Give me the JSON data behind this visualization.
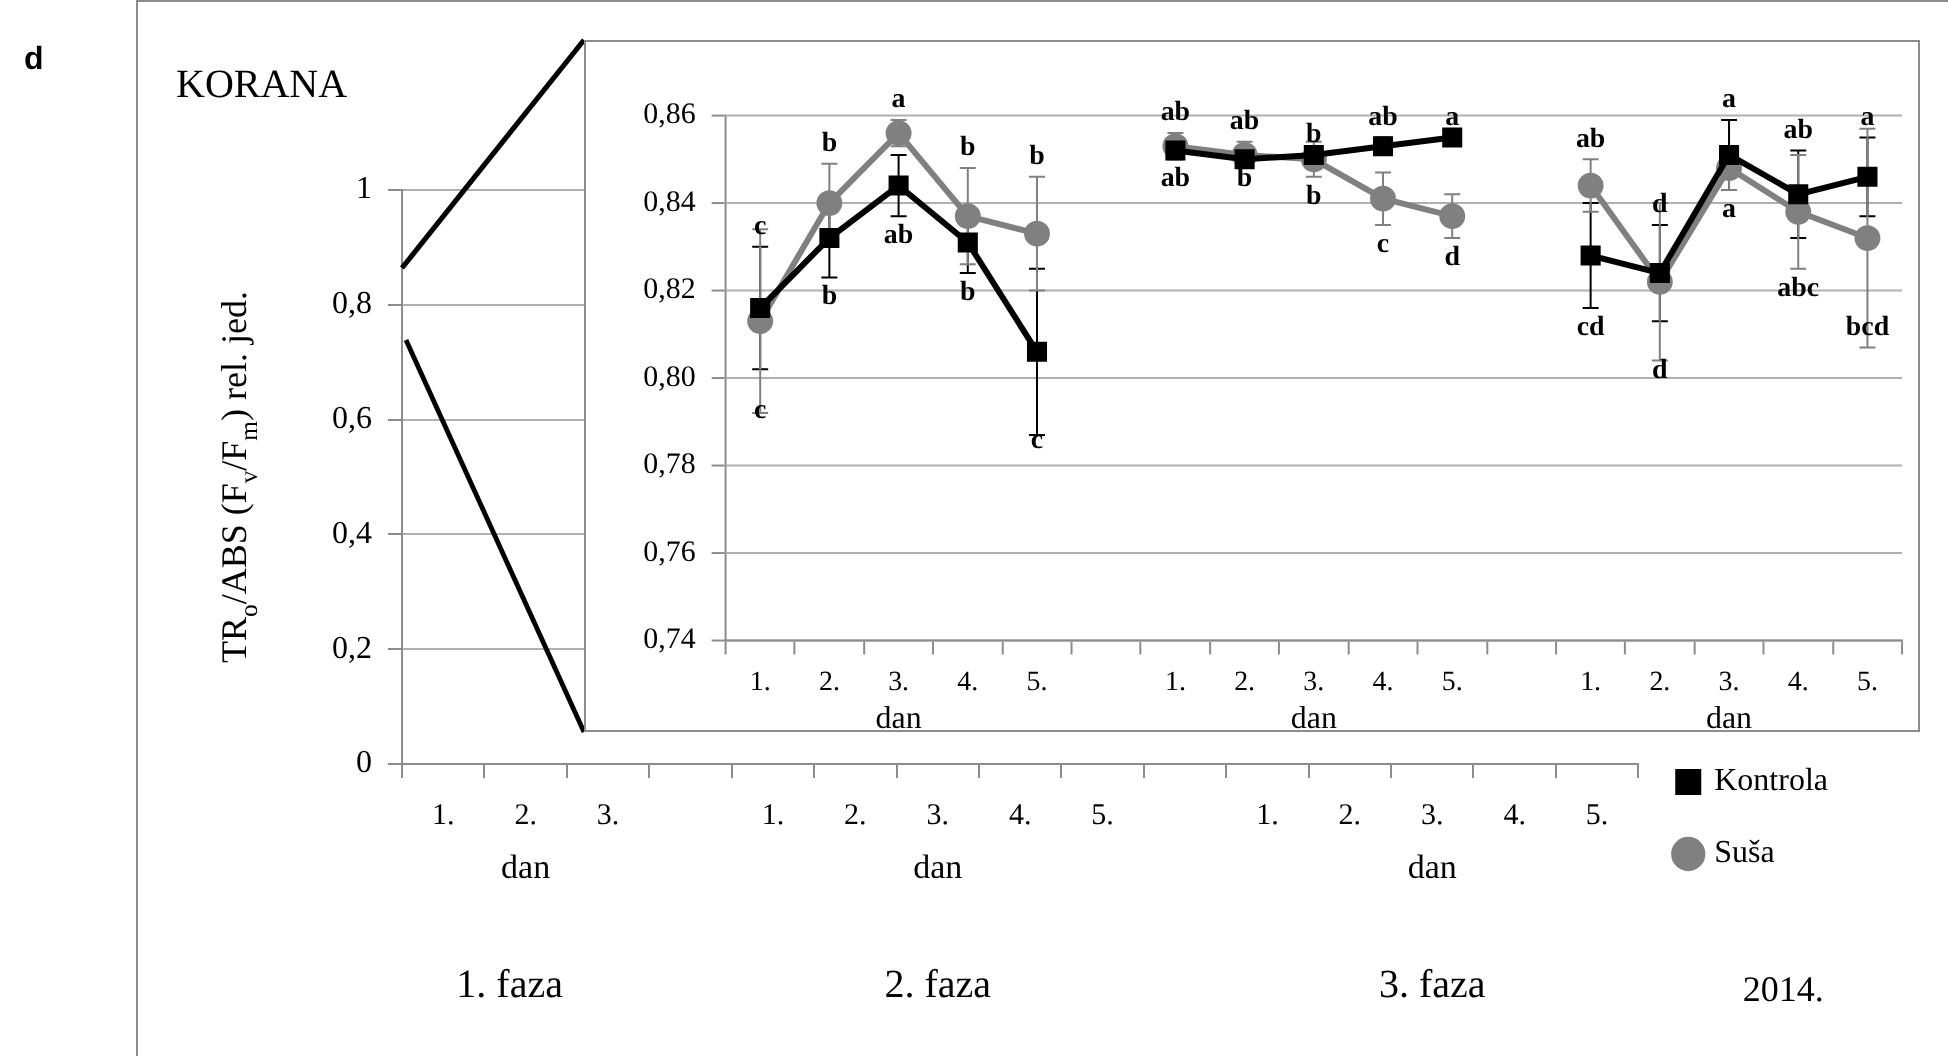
{
  "chart_data": [
    {
      "type": "line",
      "title": "KORANA",
      "ylabel": "TR$_{o}$/ABS (F$_{v}$/F$_{m}$) rel. jed.",
      "categories": [
        "1.",
        "2.",
        "3.",
        null,
        "1.",
        "2.",
        "3.",
        "4.",
        "5.",
        null,
        "1.",
        "2.",
        "3.",
        "4.",
        "5."
      ],
      "series": [
        {
          "name": "Kontrola",
          "color": "#000000",
          "marker": "square",
          "values": [
            null,
            null,
            null,
            null,
            null,
            null,
            null,
            null,
            null,
            null,
            null,
            null,
            null,
            null,
            null
          ]
        },
        {
          "name": "Suša",
          "color": "#808080",
          "marker": "circle",
          "values": [
            null,
            null,
            null,
            null,
            null,
            null,
            null,
            null,
            null,
            null,
            null,
            null,
            null,
            null,
            null
          ]
        }
      ],
      "ylim": [
        0,
        1
      ],
      "yticks": [
        0,
        {
          "value": 0.2,
          "label": "0,2"
        },
        {
          "value": 0.4,
          "label": "0,4"
        },
        {
          "value": 0.6,
          "label": "0,6"
        },
        {
          "value": 0.8,
          "label": "0,8"
        },
        1
      ],
      "grid": "y",
      "legend": "bottom right",
      "annotations": [
        "dan",
        "dan",
        "dan",
        "1. faza",
        "2. faza",
        "3. faza",
        "2014.",
        "d"
      ]
    },
    {
      "type": "line",
      "categories": [
        "1.",
        "2.",
        "3.",
        "4.",
        "5.",
        null,
        "1.",
        "2.",
        "3.",
        "4.",
        "5.",
        null,
        "1.",
        "2.",
        "3.",
        "4.",
        "5."
      ],
      "series": [
        {
          "color": "#000000",
          "marker": "square",
          "values": [
            0.816,
            0.832,
            0.844,
            0.831,
            0.806,
            null,
            0.852,
            0.85,
            0.851,
            0.853,
            0.855,
            null,
            0.828,
            0.824,
            0.851,
            0.842,
            0.846
          ],
          "errors": [
            0.014,
            0.009,
            0.007,
            0.007,
            0.019,
            null,
            0.002,
            null,
            null,
            0.002,
            null,
            null,
            0.012,
            0.011,
            0.008,
            0.01,
            0.009
          ],
          "value_labels": [
            "c",
            "b",
            "ab",
            "b",
            "c",
            null,
            "ab",
            "b",
            "b",
            "ab",
            "a",
            null,
            "cd",
            "d",
            "a",
            "ab",
            "a"
          ]
        },
        {
          "color": "#808080",
          "marker": "circle",
          "values": [
            0.813,
            0.84,
            0.856,
            0.837,
            0.833,
            null,
            0.853,
            0.851,
            0.85,
            0.841,
            0.837,
            null,
            0.844,
            0.822,
            0.848,
            0.838,
            0.832
          ],
          "errors": [
            0.021,
            0.009,
            0.003,
            0.011,
            0.013,
            null,
            0.003,
            0.003,
            0.004,
            0.006,
            0.005,
            null,
            0.006,
            0.018,
            0.005,
            0.013,
            0.025
          ],
          "value_labels": [
            "c",
            "b",
            "a",
            "b",
            "b",
            null,
            "ab",
            "ab",
            "b",
            "c",
            "d",
            null,
            "ab",
            "d",
            "a",
            "abc",
            "bcd"
          ]
        }
      ],
      "ylim": [
        0.74,
        0.86
      ],
      "yticks": [
        {
          "value": 0.74,
          "label": "0,74"
        },
        {
          "value": 0.76,
          "label": "0,76"
        },
        {
          "value": 0.78,
          "label": "0,78"
        },
        {
          "value": 0.8,
          "label": "0,80"
        },
        {
          "value": 0.82,
          "label": "0,82"
        },
        {
          "value": 0.84,
          "label": "0,84"
        },
        {
          "value": 0.86,
          "label": "0,86"
        }
      ],
      "grid": "y",
      "annotations": [
        "dan",
        "dan",
        "dan"
      ]
    }
  ]
}
